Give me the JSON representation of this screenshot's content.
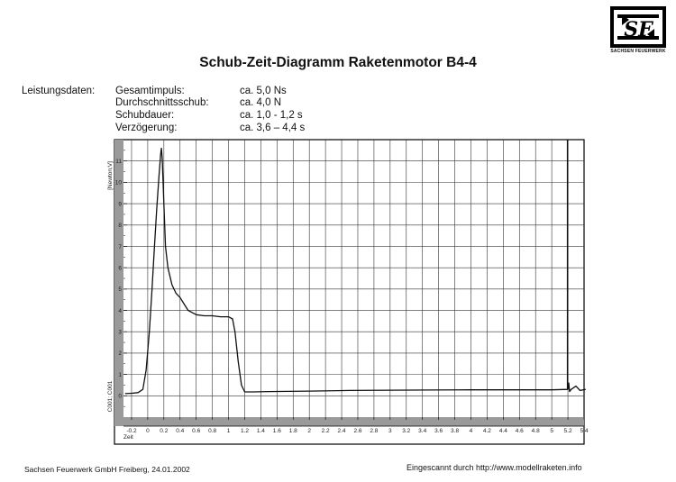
{
  "logo": {
    "text": "SF",
    "caption": "SACHSEN FEUERWERK"
  },
  "title": "Schub-Zeit-Diagramm Raketenmotor B4-4",
  "performance": {
    "label": "Leistungsdaten:",
    "rows": [
      {
        "name": "Gesamtimpuls:",
        "value": "ca. 5,0 Ns"
      },
      {
        "name": "Durchschnittsschub:",
        "value": "ca. 4,0 N"
      },
      {
        "name": "Schubdauer:",
        "value": "ca. 1,0 - 1,2 s"
      },
      {
        "name": "Verzögerung:",
        "value": "ca. 3,6 – 4,4 s"
      }
    ]
  },
  "footer": {
    "left": "Sachsen Feuerwerk GmbH Freiberg, 24.01.2002",
    "right": "Eingescannt durch http://www.modellraketen.info"
  },
  "chart_data": {
    "type": "line",
    "ylabel": "[Newton;V]",
    "ylabel_channel": "C001; C001",
    "xlabel": "Zeit",
    "xlim": [
      -0.3,
      5.4
    ],
    "ylim": [
      -1,
      12
    ],
    "grid": true,
    "x_tick_labels": [
      "-0.2",
      "0",
      "0.2",
      "0.4",
      "0.6",
      "0.8",
      "1",
      "1.2",
      "1.4",
      "1.6",
      "1.8",
      "2",
      "2.2",
      "2.4",
      "2.6",
      "2.8",
      "3",
      "3.2",
      "3.4",
      "3.6",
      "3.8",
      "4",
      "4.2",
      "4.4",
      "4.6",
      "4.8",
      "5",
      "5.2",
      "5.4"
    ],
    "y_tick_labels": [
      "0",
      "1",
      "2",
      "3",
      "4",
      "5",
      "6",
      "7",
      "8",
      "9",
      "10",
      "11"
    ],
    "series": [
      {
        "color": "#111111",
        "x": [
          -0.28,
          -0.2,
          -0.12,
          -0.06,
          -0.02,
          0.02,
          0.05,
          0.08,
          0.11,
          0.14,
          0.16,
          0.17,
          0.18,
          0.2,
          0.22,
          0.25,
          0.3,
          0.35,
          0.4,
          0.45,
          0.5,
          0.55,
          0.6,
          0.7,
          0.8,
          0.9,
          1.0,
          1.05,
          1.08,
          1.12,
          1.16,
          1.2,
          1.3,
          1.5,
          2.0,
          2.5,
          3.0,
          3.5,
          4.0,
          4.5,
          5.0,
          5.2,
          5.21,
          5.22,
          5.24,
          5.3,
          5.35,
          5.42
        ],
        "y": [
          0.1,
          0.12,
          0.15,
          0.3,
          1.2,
          3.0,
          4.8,
          6.8,
          8.7,
          10.3,
          11.3,
          11.6,
          11.1,
          9.0,
          7.0,
          6.0,
          5.2,
          4.8,
          4.6,
          4.3,
          4.0,
          3.9,
          3.8,
          3.75,
          3.75,
          3.7,
          3.7,
          3.6,
          3.0,
          1.6,
          0.5,
          0.18,
          0.18,
          0.2,
          0.22,
          0.25,
          0.26,
          0.27,
          0.28,
          0.28,
          0.28,
          0.3,
          0.6,
          0.2,
          0.3,
          0.45,
          0.25,
          0.3
        ]
      },
      {
        "color": "#111111",
        "x": [
          5.196,
          5.196
        ],
        "y": [
          0.3,
          12.0
        ]
      }
    ]
  }
}
